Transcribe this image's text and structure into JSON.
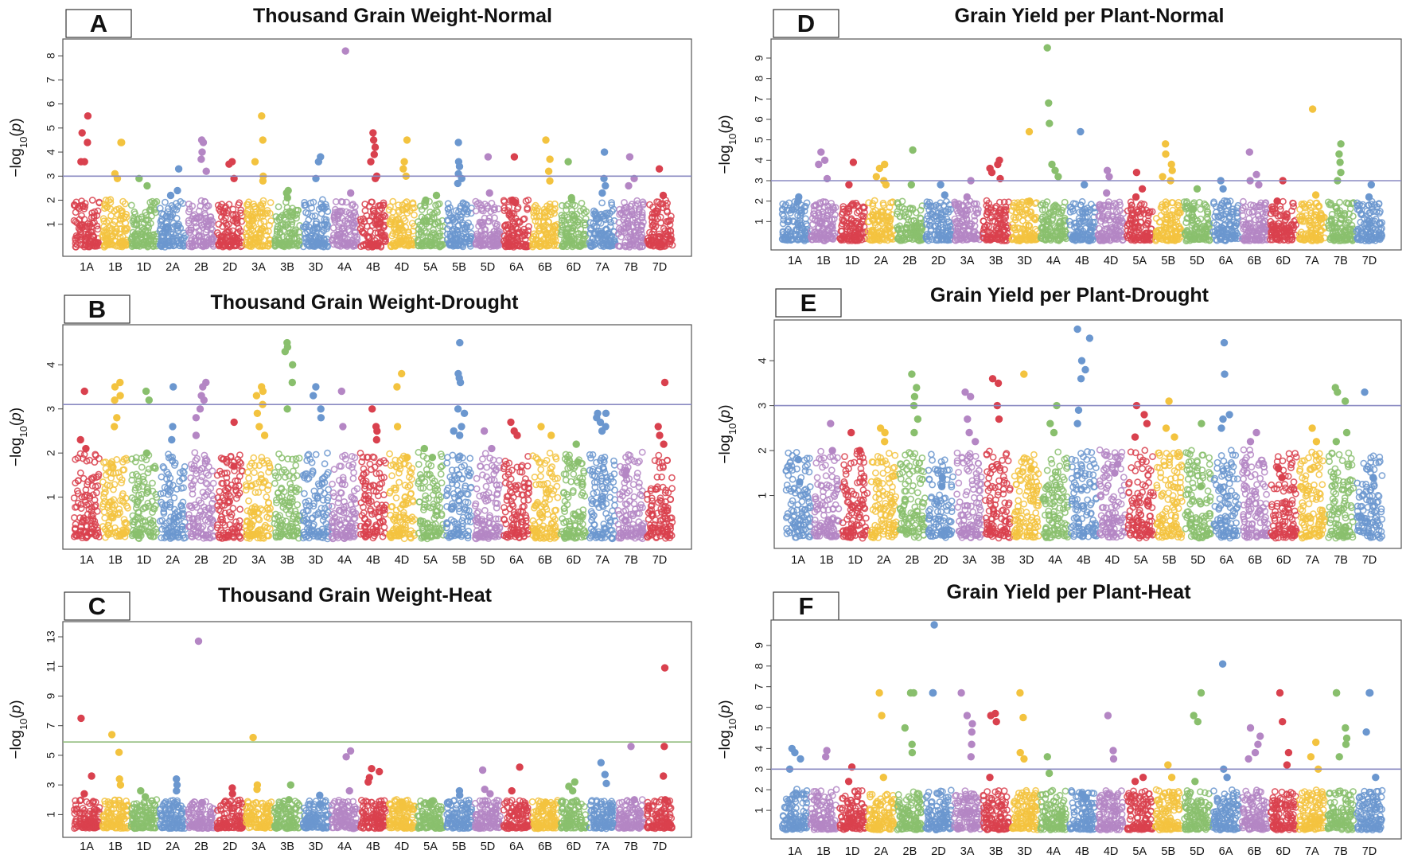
{
  "palette": [
    "#d9414e",
    "#f3c33f",
    "#89bf6d",
    "#6b97cf",
    "#b486c4"
  ],
  "chart_data": [
    {
      "type": "scatter",
      "panel": "A",
      "title": "Thousand Grain Weight-Normal",
      "ylabel": "-log10(p)",
      "yticks": [
        1,
        2,
        3,
        4,
        5,
        6,
        7,
        8
      ],
      "ylim": [
        0,
        8.5
      ],
      "threshold": 3.0,
      "threshold_color": "#8a8ac2",
      "chromosomes": [
        "1A",
        "1B",
        "1D",
        "2A",
        "2B",
        "2D",
        "3A",
        "3B",
        "3D",
        "4A",
        "4B",
        "4D",
        "5A",
        "5B",
        "5D",
        "6A",
        "6B",
        "6D",
        "7A",
        "7B",
        "7D"
      ],
      "peaks": {
        "1A": [
          5.5,
          4.8,
          4.4,
          3.6,
          3.6
        ],
        "1B": [
          4.4,
          4.4,
          3.1,
          2.9
        ],
        "1D": [
          2.9,
          2.6
        ],
        "2A": [
          3.3,
          2.4,
          2.2
        ],
        "2B": [
          4.5,
          4.4,
          4.0,
          3.7,
          3.2
        ],
        "2D": [
          3.6,
          3.5,
          2.9
        ],
        "3A": [
          5.5,
          4.5,
          3.6,
          3.0,
          2.8
        ],
        "3B": [
          2.4,
          2.3,
          2.1
        ],
        "3D": [
          3.8,
          3.6,
          2.9
        ],
        "4A": [
          8.2,
          2.3
        ],
        "4B": [
          4.8,
          4.5,
          4.2,
          3.9,
          3.6,
          3.0,
          2.9
        ],
        "4D": [
          4.5,
          3.6,
          3.3,
          3.0
        ],
        "5A": [
          2.2,
          2.0
        ],
        "5B": [
          4.4,
          3.6,
          3.4,
          3.1,
          2.9,
          2.7
        ],
        "5D": [
          3.8,
          2.3
        ],
        "6A": [
          3.8,
          2.0,
          1.9
        ],
        "6B": [
          4.5,
          3.7,
          3.2,
          2.8
        ],
        "6D": [
          3.6,
          2.1
        ],
        "7A": [
          4.0,
          2.9,
          2.6,
          2.3
        ],
        "7B": [
          3.8,
          2.9,
          2.6
        ],
        "7D": [
          3.3,
          2.2
        ]
      }
    },
    {
      "type": "scatter",
      "panel": "B",
      "title": "Thousand Grain Weight-Drought",
      "ylabel": "-log10(p)",
      "yticks": [
        1,
        2,
        3,
        4
      ],
      "ylim": [
        0,
        4.8
      ],
      "threshold": 3.1,
      "threshold_color": "#8a8ac2",
      "chromosomes": [
        "1A",
        "1B",
        "1D",
        "2A",
        "2B",
        "2D",
        "3A",
        "3B",
        "3D",
        "4A",
        "4B",
        "4D",
        "5A",
        "5B",
        "5D",
        "6A",
        "6B",
        "6D",
        "7A",
        "7B",
        "7D"
      ],
      "peaks": {
        "1A": [
          3.4,
          2.3,
          2.1
        ],
        "1B": [
          3.6,
          3.5,
          3.3,
          3.2,
          2.8,
          2.6
        ],
        "1D": [
          3.4,
          3.2,
          2.0
        ],
        "2A": [
          3.5,
          2.6,
          2.3
        ],
        "2B": [
          3.6,
          3.5,
          3.3,
          3.2,
          3.0,
          2.8,
          2.4
        ],
        "2D": [
          2.7,
          1.7
        ],
        "3A": [
          3.5,
          3.4,
          3.3,
          3.1,
          2.9,
          2.6,
          2.4
        ],
        "3B": [
          4.5,
          4.4,
          4.3,
          4.0,
          3.6,
          3.0
        ],
        "3D": [
          3.5,
          3.3,
          3.0,
          2.8
        ],
        "4A": [
          3.4,
          2.6
        ],
        "4B": [
          3.0,
          2.6,
          2.5,
          2.3
        ],
        "4D": [
          3.8,
          3.5,
          2.6,
          1.9
        ],
        "5A": [
          2.1,
          1.9
        ],
        "5B": [
          4.5,
          3.8,
          3.7,
          3.6,
          3.0,
          2.9,
          2.6,
          2.5,
          2.4
        ],
        "5D": [
          2.5,
          2.1
        ],
        "6A": [
          2.7,
          2.5,
          2.4
        ],
        "6B": [
          2.6,
          2.4
        ],
        "6D": [
          2.2,
          1.8
        ],
        "7A": [
          2.9,
          2.9,
          2.8,
          2.7,
          2.6,
          2.5
        ],
        "7B": [
          1.6,
          1.5
        ],
        "7D": [
          3.6,
          2.6,
          2.4,
          2.2
        ]
      }
    },
    {
      "type": "scatter",
      "panel": "C",
      "title": "Thousand Grain Weight-Heat",
      "ylabel": "-log10(p)",
      "yticks": [
        1,
        3,
        5,
        7,
        9,
        11,
        13
      ],
      "ylim": [
        0,
        13.7
      ],
      "threshold": 5.9,
      "threshold_color": "#8fba7a",
      "chromosomes": [
        "1A",
        "1B",
        "1D",
        "2A",
        "2B",
        "2D",
        "3A",
        "3B",
        "3D",
        "4A",
        "4B",
        "4D",
        "5A",
        "5B",
        "5D",
        "6A",
        "6B",
        "6D",
        "7A",
        "7B",
        "7D"
      ],
      "peaks": {
        "1A": [
          7.5,
          3.6,
          2.4
        ],
        "1B": [
          6.4,
          5.2,
          3.4,
          3.0
        ],
        "1D": [
          2.6,
          2.2
        ],
        "2A": [
          3.4,
          3.0,
          2.6
        ],
        "2B": [
          12.7,
          1.8
        ],
        "2D": [
          2.8,
          2.4
        ],
        "3A": [
          6.2,
          3.0,
          2.7
        ],
        "3B": [
          3.0,
          2.0
        ],
        "3D": [
          2.3,
          1.7
        ],
        "4A": [
          5.3,
          4.9,
          2.6
        ],
        "4B": [
          4.1,
          3.9,
          3.5,
          3.2
        ],
        "4D": [
          1.8,
          1.5
        ],
        "5A": [
          1.9,
          1.7
        ],
        "5B": [
          2.6,
          2.3
        ],
        "5D": [
          4.0,
          2.7,
          2.4
        ],
        "6A": [
          4.2,
          2.6
        ],
        "6B": [
          1.8,
          1.6
        ],
        "6D": [
          3.2,
          2.9,
          2.6
        ],
        "7A": [
          4.5,
          3.7,
          3.1
        ],
        "7B": [
          5.6,
          2.0
        ],
        "7D": [
          10.9,
          5.6,
          3.6,
          2.0
        ]
      }
    },
    {
      "type": "scatter",
      "panel": "D",
      "title": "Grain Yield per Plant-Normal",
      "ylabel": "-log10(p)",
      "yticks": [
        1,
        2,
        3,
        4,
        5,
        6,
        7,
        8,
        9
      ],
      "ylim": [
        0,
        9.7
      ],
      "threshold": 3.0,
      "threshold_color": "#8a8ac2",
      "chromosomes": [
        "1A",
        "1B",
        "1D",
        "2A",
        "2B",
        "2D",
        "3A",
        "3B",
        "3D",
        "4A",
        "4B",
        "4D",
        "5A",
        "5B",
        "5D",
        "6A",
        "6B",
        "6D",
        "7A",
        "7B",
        "7D"
      ],
      "peaks": {
        "1A": [
          2.2,
          2.0
        ],
        "1B": [
          4.4,
          4.0,
          3.8,
          3.1
        ],
        "1D": [
          3.9,
          2.8
        ],
        "2A": [
          3.8,
          3.6,
          3.2,
          3.0,
          2.8
        ],
        "2B": [
          4.5,
          2.8
        ],
        "2D": [
          2.8,
          2.3
        ],
        "3A": [
          3.0,
          2.2
        ],
        "3B": [
          4.0,
          3.8,
          3.6,
          3.4,
          3.1
        ],
        "3D": [
          5.4,
          2.0
        ],
        "4A": [
          9.5,
          6.8,
          5.8,
          3.8,
          3.5,
          3.2
        ],
        "4B": [
          5.4,
          2.8
        ],
        "4D": [
          3.5,
          3.2,
          2.4
        ],
        "5A": [
          3.4,
          2.6,
          2.2
        ],
        "5B": [
          4.8,
          4.3,
          3.8,
          3.5,
          3.2,
          3.0
        ],
        "5D": [
          2.6,
          1.6
        ],
        "6A": [
          3.0,
          2.6
        ],
        "6B": [
          4.4,
          3.3,
          3.0,
          2.8
        ],
        "6D": [
          3.0,
          2.0
        ],
        "7A": [
          6.5,
          2.3
        ],
        "7B": [
          4.8,
          4.3,
          3.9,
          3.4,
          3.0
        ],
        "7D": [
          2.8,
          2.2
        ]
      }
    },
    {
      "type": "scatter",
      "panel": "E",
      "title": "Grain Yield per Plant-Drought",
      "ylabel": "-log10(p)",
      "yticks": [
        1,
        2,
        3,
        4
      ],
      "ylim": [
        0,
        4.8
      ],
      "threshold": 3.0,
      "threshold_color": "#8a8ac2",
      "chromosomes": [
        "1A",
        "1B",
        "1D",
        "2A",
        "2B",
        "2D",
        "3A",
        "3B",
        "3D",
        "4A",
        "4B",
        "4D",
        "5A",
        "5B",
        "5D",
        "6A",
        "6B",
        "6D",
        "7A",
        "7B",
        "7D"
      ],
      "peaks": {
        "1A": [
          1.8,
          1.3
        ],
        "1B": [
          2.6,
          2.0
        ],
        "1D": [
          2.4,
          2.0
        ],
        "2A": [
          2.5,
          2.4,
          2.2
        ],
        "2B": [
          3.7,
          3.4,
          3.2,
          3.0,
          2.7,
          2.4
        ],
        "2D": [
          1.4,
          1.2
        ],
        "3A": [
          3.3,
          3.2,
          2.7,
          2.4,
          2.2
        ],
        "3B": [
          3.6,
          3.5,
          3.0,
          2.7
        ],
        "3D": [
          3.7,
          1.6
        ],
        "4A": [
          3.0,
          2.6,
          2.4
        ],
        "4B": [
          4.7,
          4.5,
          4.0,
          3.8,
          3.6,
          2.9,
          2.6
        ],
        "4D": [
          1.7,
          1.5
        ],
        "5A": [
          3.0,
          2.8,
          2.6,
          2.3
        ],
        "5B": [
          3.1,
          2.5,
          2.3
        ],
        "5D": [
          2.6,
          1.2
        ],
        "6A": [
          4.4,
          3.7,
          2.8,
          2.7,
          2.5
        ],
        "6B": [
          2.4,
          2.2
        ],
        "6D": [
          1.6,
          1.4
        ],
        "7A": [
          2.5,
          2.2
        ],
        "7B": [
          3.4,
          3.3,
          3.1,
          2.4,
          2.2
        ],
        "7D": [
          3.3,
          1.4
        ]
      }
    },
    {
      "type": "scatter",
      "panel": "F",
      "title": "Grain Yield per Plant-Heat",
      "ylabel": "-log10(p)",
      "yticks": [
        1,
        2,
        3,
        4,
        5,
        6,
        7,
        8,
        9
      ],
      "ylim": [
        0,
        10.0
      ],
      "threshold": 3.0,
      "threshold_color": "#8a8ac2",
      "chromosomes": [
        "1A",
        "1B",
        "1D",
        "2A",
        "2B",
        "2D",
        "3A",
        "3B",
        "3D",
        "4A",
        "4B",
        "4D",
        "5A",
        "5B",
        "5D",
        "6A",
        "6B",
        "6D",
        "7A",
        "7B",
        "7D"
      ],
      "peaks": {
        "1A": [
          4.0,
          3.8,
          3.5,
          3.0
        ],
        "1B": [
          3.9,
          3.6
        ],
        "1D": [
          3.1,
          2.4
        ],
        "2A": [
          6.7,
          5.6,
          2.6
        ],
        "2B": [
          6.7,
          6.7,
          5.0,
          4.2,
          3.8
        ],
        "2D": [
          10.0,
          6.7,
          6.7
        ],
        "3A": [
          6.7,
          5.6,
          5.2,
          4.8,
          4.2,
          3.6
        ],
        "3B": [
          5.7,
          5.6,
          5.3,
          2.6
        ],
        "3D": [
          6.7,
          5.5,
          3.8,
          3.5
        ],
        "4A": [
          3.6,
          2.8
        ],
        "4B": [
          1.8,
          1.6
        ],
        "4D": [
          5.6,
          3.9,
          3.5
        ],
        "5A": [
          2.6,
          2.4
        ],
        "5B": [
          3.2,
          2.6
        ],
        "5D": [
          6.7,
          5.6,
          5.3,
          2.4
        ],
        "6A": [
          8.1,
          3.0,
          2.6
        ],
        "6B": [
          5.0,
          4.6,
          4.2,
          3.8,
          3.5
        ],
        "6D": [
          6.7,
          5.3,
          3.8,
          3.2
        ],
        "7A": [
          4.3,
          3.6,
          3.0
        ],
        "7B": [
          6.7,
          6.7,
          5.0,
          4.5,
          4.2,
          3.6
        ],
        "7D": [
          6.7,
          6.7,
          6.7,
          4.8,
          2.6
        ]
      }
    }
  ]
}
